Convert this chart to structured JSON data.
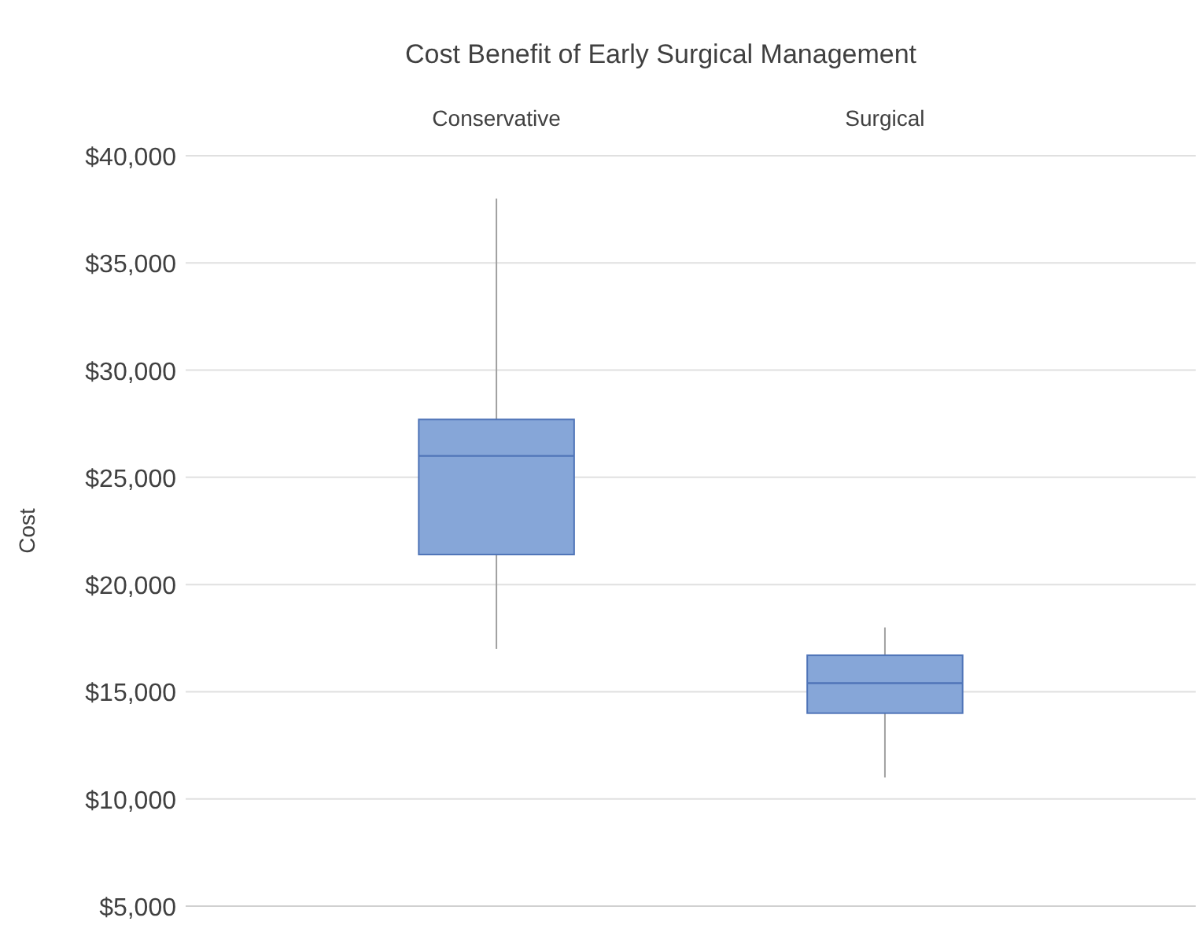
{
  "chart_data": {
    "type": "box",
    "title": "Cost Benefit of Early Surgical Management",
    "ylabel": "Cost",
    "categories": [
      "Conservative",
      "Surgical"
    ],
    "boxes": [
      {
        "low": 17000,
        "q1": 21400,
        "median": 26000,
        "q3": 27700,
        "high": 38000
      },
      {
        "low": 11000,
        "q1": 14000,
        "median": 15400,
        "q3": 16700,
        "high": 18000
      }
    ],
    "color": "#86a6d8",
    "ylim": [
      5000,
      40000
    ],
    "yticks": [
      {
        "value": 5000,
        "label": "$5,000"
      },
      {
        "value": 10000,
        "label": "$10,000"
      },
      {
        "value": 15000,
        "label": "$15,000"
      },
      {
        "value": 20000,
        "label": "$20,000"
      },
      {
        "value": 25000,
        "label": "$25,000"
      },
      {
        "value": 30000,
        "label": "$30,000"
      },
      {
        "value": 35000,
        "label": "$35,000"
      },
      {
        "value": 40000,
        "label": "$40,000"
      }
    ],
    "grid": "y"
  }
}
